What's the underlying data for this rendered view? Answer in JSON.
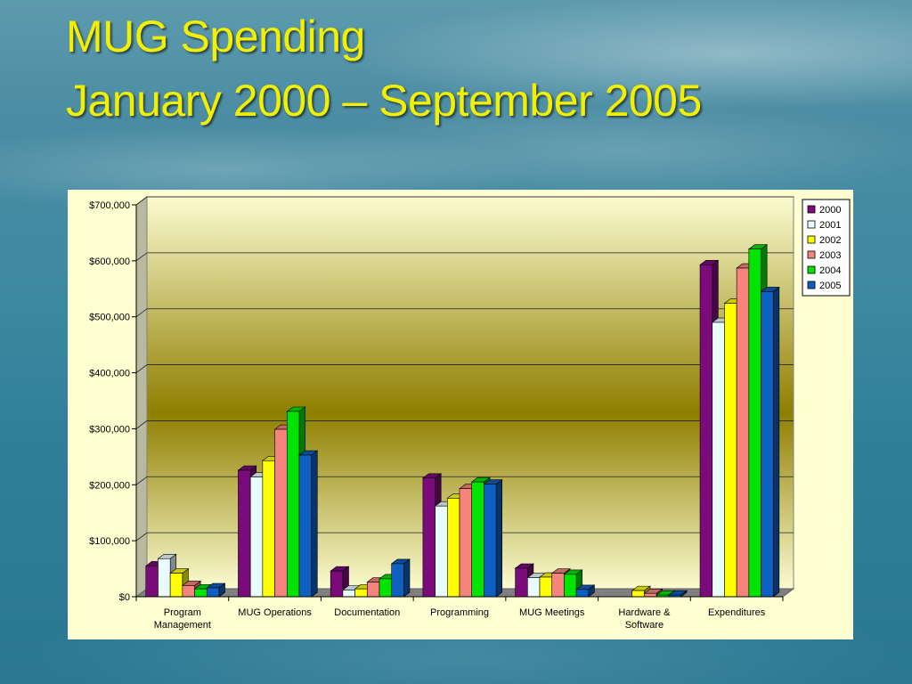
{
  "slide": {
    "title_line1": "MUG Spending",
    "title_line2": "January 2000 – September 2005"
  },
  "chart_data": {
    "type": "bar",
    "title": "",
    "xlabel": "",
    "ylabel": "",
    "ylim": [
      0,
      700000
    ],
    "yticks": [
      0,
      100000,
      200000,
      300000,
      400000,
      500000,
      600000,
      700000
    ],
    "ytick_labels": [
      "$0",
      "$100,000",
      "$200,000",
      "$300,000",
      "$400,000",
      "$500,000",
      "$600,000",
      "$700,000"
    ],
    "grid": true,
    "legend_position": "top-right",
    "categories": [
      [
        "Program",
        "Management"
      ],
      [
        "MUG Operations"
      ],
      [
        "Documentation"
      ],
      [
        "Programming"
      ],
      [
        "MUG Meetings"
      ],
      [
        "Hardware &",
        "Software"
      ],
      [
        "Expenditures"
      ]
    ],
    "series": [
      {
        "name": "2000",
        "color": "#7b0a7b",
        "values": [
          55000,
          226000,
          46000,
          212000,
          51000,
          0,
          593000
        ]
      },
      {
        "name": "2001",
        "color": "#e8fbff",
        "values": [
          68000,
          214000,
          12000,
          162000,
          34000,
          0,
          490000
        ]
      },
      {
        "name": "2002",
        "color": "#ffff00",
        "values": [
          42000,
          243000,
          14000,
          176000,
          35000,
          11000,
          524000
        ]
      },
      {
        "name": "2003",
        "color": "#f7837d",
        "values": [
          20000,
          299000,
          26000,
          193000,
          42000,
          6000,
          587000
        ]
      },
      {
        "name": "2004",
        "color": "#00e400",
        "values": [
          14000,
          331000,
          32000,
          205000,
          40000,
          3000,
          621000
        ]
      },
      {
        "name": "2005",
        "color": "#0d5fc0",
        "values": [
          16000,
          253000,
          59000,
          201000,
          13000,
          3000,
          545000
        ]
      }
    ]
  }
}
